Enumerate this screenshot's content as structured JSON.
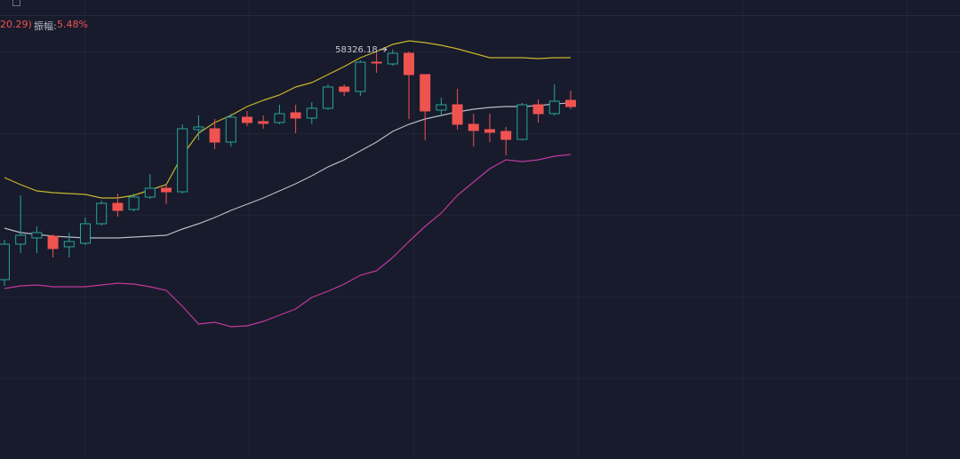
{
  "header": {
    "fragment": "20.29)",
    "amplitude_label": "振幅:",
    "amplitude_value": "5.48%"
  },
  "chart_data": {
    "type": "candlestick",
    "annotation": "58326.18",
    "ylim": [
      44490,
      60000
    ],
    "up_color": "#26a69a",
    "down_color": "#ef5350",
    "open": [
      50550,
      51750,
      51960,
      52020,
      51660,
      51780,
      52440,
      53130,
      52920,
      53340,
      53640,
      53520,
      55620,
      55650,
      55200,
      56040,
      55890,
      55860,
      56190,
      56010,
      56340,
      57060,
      56910,
      57900,
      57840,
      58200,
      57480,
      56280,
      56460,
      55800,
      55620,
      55560,
      55290,
      56460,
      56160,
      56610
    ],
    "high": [
      51900,
      53400,
      52350,
      52080,
      52140,
      52650,
      53220,
      53460,
      53460,
      54120,
      53760,
      55800,
      56100,
      55980,
      56160,
      56250,
      56100,
      56460,
      56460,
      56550,
      57150,
      57150,
      57960,
      58260,
      58326.18,
      58260,
      57480,
      56700,
      57000,
      56160,
      56160,
      55710,
      56520,
      56640,
      57150,
      56940
    ],
    "low": [
      50340,
      51450,
      51450,
      51300,
      51300,
      51720,
      52380,
      52680,
      52860,
      53280,
      53100,
      53460,
      55260,
      54960,
      55050,
      55740,
      55650,
      55800,
      55500,
      55800,
      56280,
      56760,
      56760,
      57540,
      57780,
      55980,
      55260,
      56100,
      55620,
      55050,
      55200,
      54750,
      55260,
      55860,
      56100,
      56310
    ],
    "close": [
      51750,
      52050,
      52140,
      51600,
      51840,
      52440,
      53130,
      52890,
      53340,
      53640,
      53520,
      55650,
      55710,
      55200,
      56040,
      55860,
      55830,
      56160,
      56010,
      56340,
      57060,
      56910,
      57900,
      57870,
      58200,
      57480,
      56250,
      56460,
      55800,
      55590,
      55530,
      55290,
      56460,
      56160,
      56580,
      56400
    ],
    "series": [
      {
        "color": "#c9b52c",
        "values": [
          54000,
          53760,
          53550,
          53490,
          53460,
          53430,
          53310,
          53310,
          53400,
          53580,
          53760,
          54750,
          55500,
          55860,
          56100,
          56400,
          56610,
          56790,
          57060,
          57210,
          57480,
          57750,
          58050,
          58260,
          58500,
          58620,
          58560,
          58470,
          58350,
          58200,
          58050,
          58050,
          58050,
          58020,
          58050,
          58050
        ]
      },
      {
        "color": "#b8bcc8",
        "values": [
          52290,
          52140,
          52080,
          52020,
          51990,
          51960,
          51960,
          51960,
          51990,
          52020,
          52050,
          52260,
          52440,
          52650,
          52890,
          53100,
          53310,
          53550,
          53790,
          54060,
          54360,
          54600,
          54900,
          55200,
          55560,
          55800,
          55980,
          56100,
          56220,
          56310,
          56370,
          56400,
          56400,
          56430,
          56490,
          56520
        ]
      },
      {
        "color": "#c0399a",
        "values": [
          50250,
          50340,
          50370,
          50310,
          50310,
          50310,
          50370,
          50430,
          50400,
          50310,
          50190,
          49650,
          49050,
          49110,
          48960,
          48990,
          49140,
          49350,
          49560,
          49950,
          50160,
          50400,
          50700,
          50850,
          51300,
          51840,
          52350,
          52800,
          53400,
          53850,
          54300,
          54600,
          54540,
          54600,
          54720,
          54780
        ]
      }
    ]
  }
}
